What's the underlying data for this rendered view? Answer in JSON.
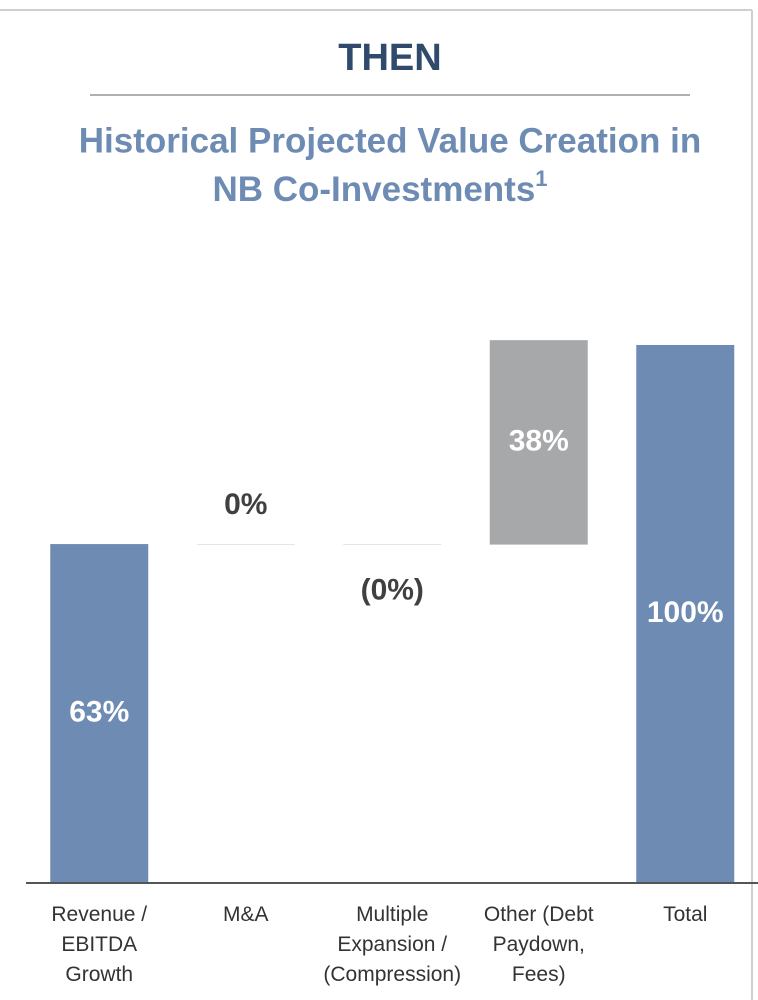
{
  "header": "THEN",
  "chart_data": {
    "type": "waterfall",
    "title_lines": [
      "Historical Projected Value Creation in",
      "NB Co-Investments"
    ],
    "title_footnote": "1",
    "categories": [
      "Revenue /\nEBITDA\nGrowth",
      "M&A",
      "Multiple\nExpansion /\n(Compression)",
      "Other (Debt\nPaydown,\nFees)",
      "Total"
    ],
    "values": [
      63,
      0,
      -0.1,
      38,
      100
    ],
    "value_labels": [
      "63%",
      "0%",
      "(0%)",
      "38%",
      "100%"
    ],
    "totals": [
      false,
      false,
      false,
      false,
      true
    ],
    "colors": [
      "#6e8cb3",
      "#6e8cb3",
      "#6e8cb3",
      "#a7a8aa",
      "#6e8cb3"
    ],
    "ylim": [
      0,
      100
    ]
  }
}
